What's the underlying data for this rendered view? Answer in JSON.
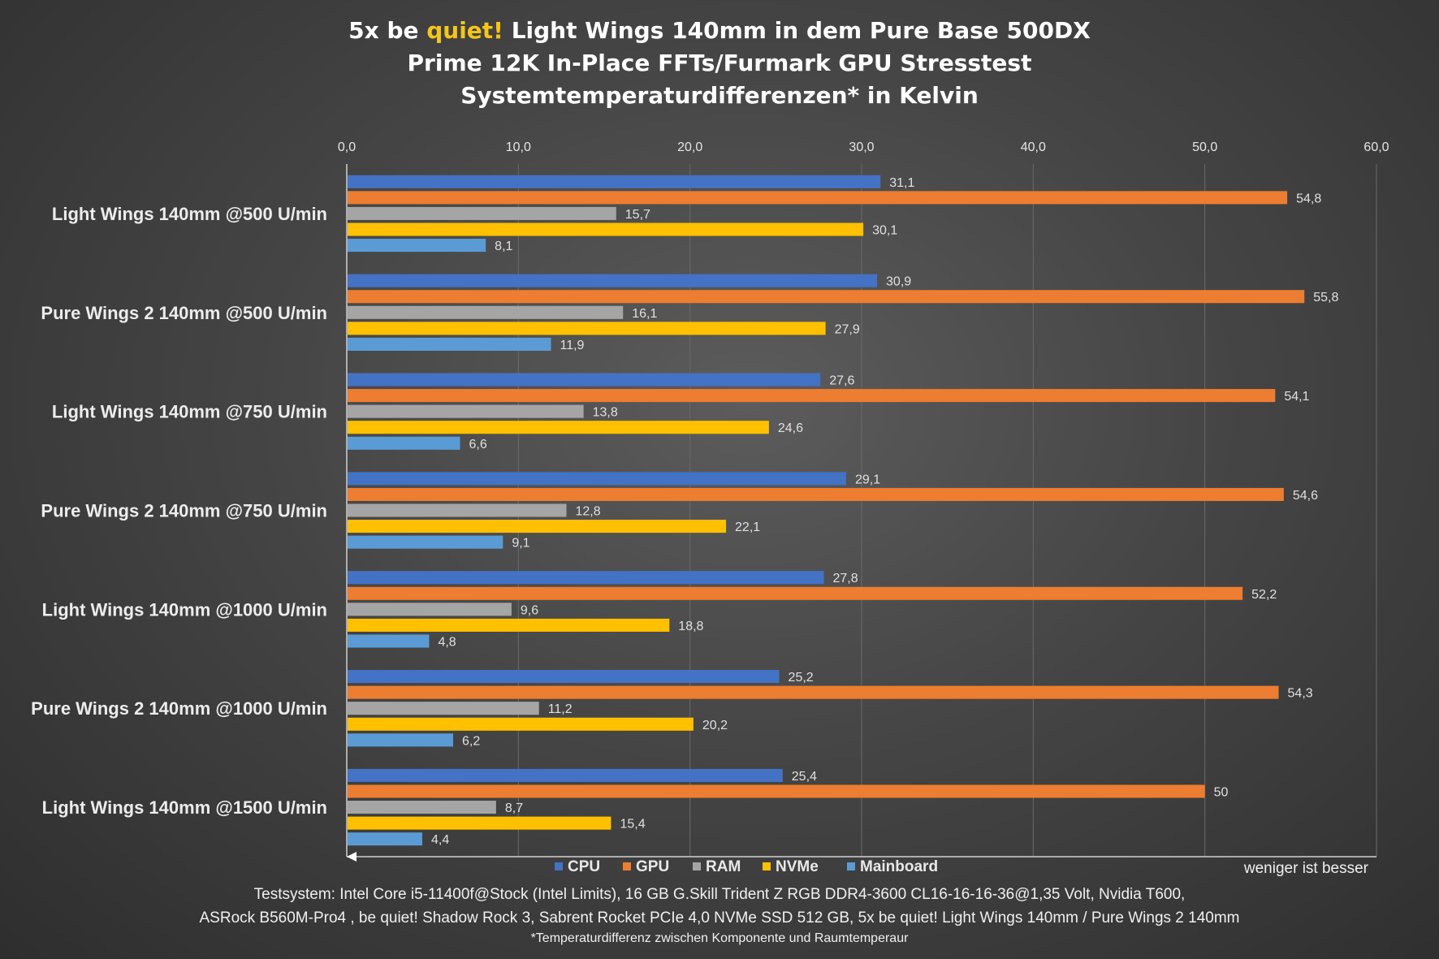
{
  "title": {
    "line1_before": "5x be ",
    "line1_highlight": "quiet!",
    "line1_after": " Light Wings 140mm in dem Pure Base 500DX",
    "line2": "Prime 12K In-Place FFTs/Furmark GPU Stresstest",
    "line3": "Systemtemperaturdifferenzen* in Kelvin"
  },
  "colors": {
    "CPU": "#4472c4",
    "GPU": "#ed7d31",
    "RAM": "#a5a5a5",
    "NVMe": "#ffc000",
    "Mainboard": "#5b9bd5",
    "highlight": "#f5c518"
  },
  "chart_data": {
    "type": "bar",
    "orientation": "horizontal",
    "categories": [
      "Light Wings 140mm @500 U/min",
      "Pure Wings 2 140mm @500 U/min",
      "Light Wings 140mm @750 U/min",
      "Pure Wings 2 140mm @750 U/min",
      "Light Wings 140mm @1000 U/min",
      "Pure Wings 2 140mm @1000 U/min",
      "Light Wings 140mm @1500 U/min"
    ],
    "series": [
      {
        "name": "CPU",
        "values": [
          31.1,
          30.9,
          27.6,
          29.1,
          27.8,
          25.2,
          25.4
        ],
        "labels": [
          "31,1",
          "30,9",
          "27,6",
          "29,1",
          "27,8",
          "25,2",
          "25,4"
        ]
      },
      {
        "name": "GPU",
        "values": [
          54.8,
          55.8,
          54.1,
          54.6,
          52.2,
          54.3,
          50
        ],
        "labels": [
          "54,8",
          "55,8",
          "54,1",
          "54,6",
          "52,2",
          "54,3",
          "50"
        ]
      },
      {
        "name": "RAM",
        "values": [
          15.7,
          16.1,
          13.8,
          12.8,
          9.6,
          11.2,
          8.7
        ],
        "labels": [
          "15,7",
          "16,1",
          "13,8",
          "12,8",
          "9,6",
          "11,2",
          "8,7"
        ]
      },
      {
        "name": "NVMe",
        "values": [
          30.1,
          27.9,
          24.6,
          22.1,
          18.8,
          20.2,
          15.4
        ],
        "labels": [
          "30,1",
          "27,9",
          "24,6",
          "22,1",
          "18,8",
          "20,2",
          "15,4"
        ]
      },
      {
        "name": "Mainboard",
        "values": [
          8.1,
          11.9,
          6.6,
          9.1,
          4.8,
          6.2,
          4.4
        ],
        "labels": [
          "8,1",
          "11,9",
          "6,6",
          "9,1",
          "4,8",
          "6,2",
          "4,4"
        ]
      }
    ],
    "xlim": [
      0,
      60
    ],
    "xticks": [
      0,
      10,
      20,
      30,
      40,
      50,
      60
    ],
    "xtick_labels": [
      "0,0",
      "10,0",
      "20,0",
      "30,0",
      "40,0",
      "50,0",
      "60,0"
    ],
    "axis_position": "top",
    "grid": true,
    "legend": [
      "CPU",
      "GPU",
      "RAM",
      "NVMe",
      "Mainboard"
    ],
    "legend_position": "bottom",
    "direction_note": "weniger ist besser"
  },
  "footer": {
    "line1": "Testsystem: Intel Core i5-11400f@Stock (Intel Limits), 16 GB G.Skill Trident Z RGB DDR4-3600 CL16-16-16-36@1,35 Volt, Nvidia T600,",
    "line2": "ASRock B560M-Pro4 , be quiet! Shadow Rock 3, Sabrent Rocket PCIe 4,0 NVMe SSD 512 GB, 5x be quiet! Light Wings 140mm / Pure Wings 2 140mm",
    "footnote": "*Temperaturdifferenz zwischen Komponente und Raumtemperaur"
  }
}
